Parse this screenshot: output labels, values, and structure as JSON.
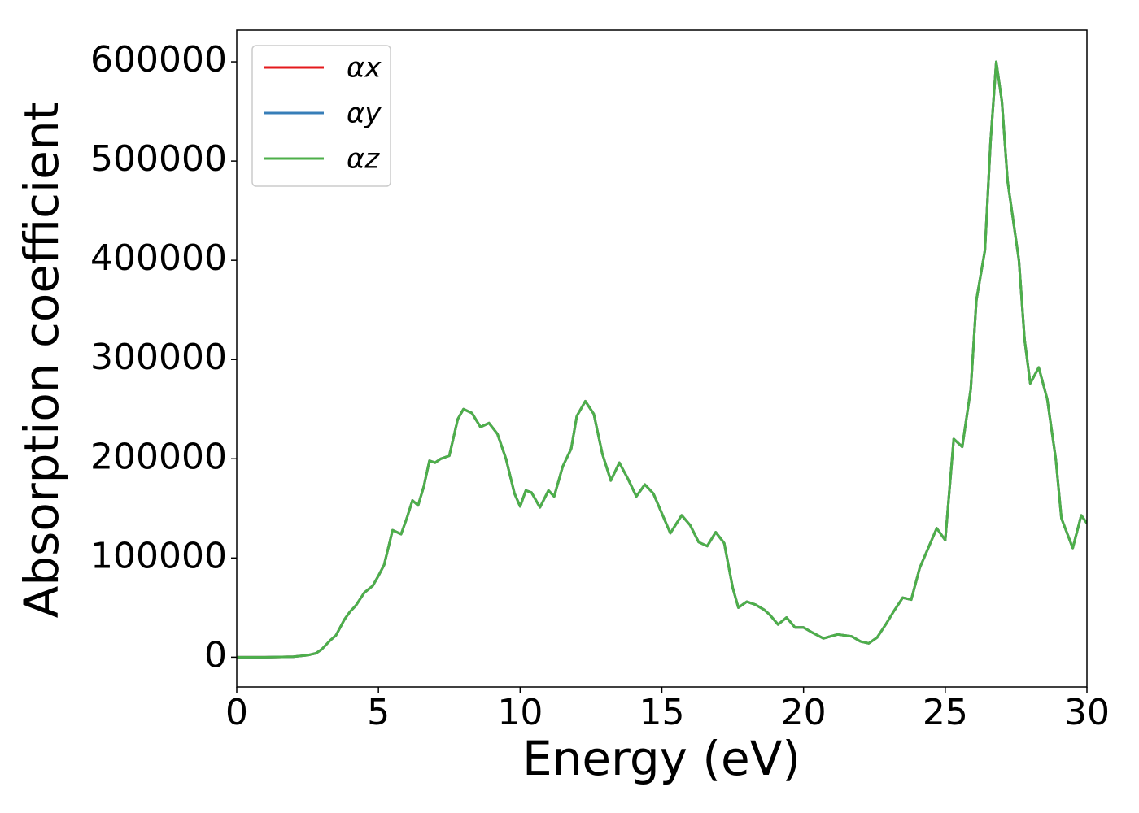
{
  "chart_data": {
    "type": "line",
    "xlabel": "Energy (eV)",
    "ylabel": "Absorption coefficient",
    "x": [
      0,
      1,
      2,
      2.5,
      2.8,
      3,
      3.3,
      3.5,
      3.8,
      4,
      4.2,
      4.5,
      4.8,
      5,
      5.2,
      5.5,
      5.8,
      6,
      6.2,
      6.4,
      6.6,
      6.8,
      7,
      7.2,
      7.5,
      7.8,
      8,
      8.3,
      8.6,
      8.9,
      9.2,
      9.5,
      9.8,
      10,
      10.2,
      10.4,
      10.7,
      11,
      11.2,
      11.5,
      11.8,
      12,
      12.3,
      12.6,
      12.9,
      13.2,
      13.5,
      13.8,
      14.1,
      14.4,
      14.7,
      15,
      15.3,
      15.7,
      16,
      16.3,
      16.6,
      16.9,
      17.2,
      17.5,
      17.7,
      18,
      18.3,
      18.6,
      18.8,
      19.1,
      19.4,
      19.7,
      20,
      20.3,
      20.7,
      21.2,
      21.7,
      22,
      22.3,
      22.6,
      22.9,
      23.2,
      23.5,
      23.8,
      24.1,
      24.4,
      24.7,
      25,
      25.3,
      25.6,
      25.9,
      26.1,
      26.4,
      26.6,
      26.8,
      27,
      27.2,
      27.6,
      27.8,
      28,
      28.3,
      28.6,
      28.9,
      29.1,
      29.5,
      29.8,
      30
    ],
    "series": [
      {
        "name": "αx",
        "color": "#e41a1c",
        "values": [
          0,
          0,
          500,
          2000,
          4000,
          8000,
          17000,
          22000,
          38000,
          46000,
          52000,
          65000,
          72000,
          82000,
          93000,
          128000,
          124000,
          140000,
          158000,
          153000,
          172000,
          198000,
          196000,
          200000,
          203000,
          240000,
          250000,
          246000,
          232000,
          236000,
          225000,
          200000,
          165000,
          152000,
          168000,
          166000,
          151000,
          168000,
          162000,
          192000,
          210000,
          243000,
          258000,
          245000,
          205000,
          178000,
          196000,
          180000,
          162000,
          174000,
          165000,
          145000,
          125000,
          143000,
          133000,
          116000,
          112000,
          126000,
          115000,
          70000,
          50000,
          56000,
          53000,
          48000,
          43000,
          33000,
          40000,
          30000,
          30000,
          25000,
          19000,
          23000,
          21000,
          16000,
          14000,
          20000,
          33000,
          47000,
          60000,
          58000,
          90000,
          110000,
          130000,
          118000,
          220000,
          212000,
          270000,
          360000,
          410000,
          520000,
          600000,
          560000,
          480000,
          400000,
          320000,
          276000,
          292000,
          260000,
          200000,
          140000,
          110000,
          143000,
          135000
        ]
      },
      {
        "name": "αy",
        "color": "#377eb8",
        "values": [
          0,
          0,
          500,
          2000,
          4000,
          8000,
          17000,
          22000,
          38000,
          46000,
          52000,
          65000,
          72000,
          82000,
          93000,
          128000,
          124000,
          140000,
          158000,
          153000,
          172000,
          198000,
          196000,
          200000,
          203000,
          240000,
          250000,
          246000,
          232000,
          236000,
          225000,
          200000,
          165000,
          152000,
          168000,
          166000,
          151000,
          168000,
          162000,
          192000,
          210000,
          243000,
          258000,
          245000,
          205000,
          178000,
          196000,
          180000,
          162000,
          174000,
          165000,
          145000,
          125000,
          143000,
          133000,
          116000,
          112000,
          126000,
          115000,
          70000,
          50000,
          56000,
          53000,
          48000,
          43000,
          33000,
          40000,
          30000,
          30000,
          25000,
          19000,
          23000,
          21000,
          16000,
          14000,
          20000,
          33000,
          47000,
          60000,
          58000,
          90000,
          110000,
          130000,
          118000,
          220000,
          212000,
          270000,
          360000,
          410000,
          520000,
          600000,
          560000,
          480000,
          400000,
          320000,
          276000,
          292000,
          260000,
          200000,
          140000,
          110000,
          143000,
          135000
        ]
      },
      {
        "name": "αz",
        "color": "#4daf4a",
        "values": [
          0,
          0,
          500,
          2000,
          4000,
          8000,
          17000,
          22000,
          38000,
          46000,
          52000,
          65000,
          72000,
          82000,
          93000,
          128000,
          124000,
          140000,
          158000,
          153000,
          172000,
          198000,
          196000,
          200000,
          203000,
          240000,
          250000,
          246000,
          232000,
          236000,
          225000,
          200000,
          165000,
          152000,
          168000,
          166000,
          151000,
          168000,
          162000,
          192000,
          210000,
          243000,
          258000,
          245000,
          205000,
          178000,
          196000,
          180000,
          162000,
          174000,
          165000,
          145000,
          125000,
          143000,
          133000,
          116000,
          112000,
          126000,
          115000,
          70000,
          50000,
          56000,
          53000,
          48000,
          43000,
          33000,
          40000,
          30000,
          30000,
          25000,
          19000,
          23000,
          21000,
          16000,
          14000,
          20000,
          33000,
          47000,
          60000,
          58000,
          90000,
          110000,
          130000,
          118000,
          220000,
          212000,
          270000,
          360000,
          410000,
          520000,
          600000,
          560000,
          480000,
          400000,
          320000,
          276000,
          292000,
          260000,
          200000,
          140000,
          110000,
          143000,
          135000
        ]
      }
    ],
    "xlim": [
      0,
      30
    ],
    "xticks": [
      0,
      5,
      10,
      15,
      20,
      25,
      30
    ],
    "ylim": [
      -30000,
      632000
    ],
    "yticks": [
      0,
      100000,
      200000,
      300000,
      400000,
      500000,
      600000
    ],
    "grid": false,
    "legend": "upper left"
  }
}
